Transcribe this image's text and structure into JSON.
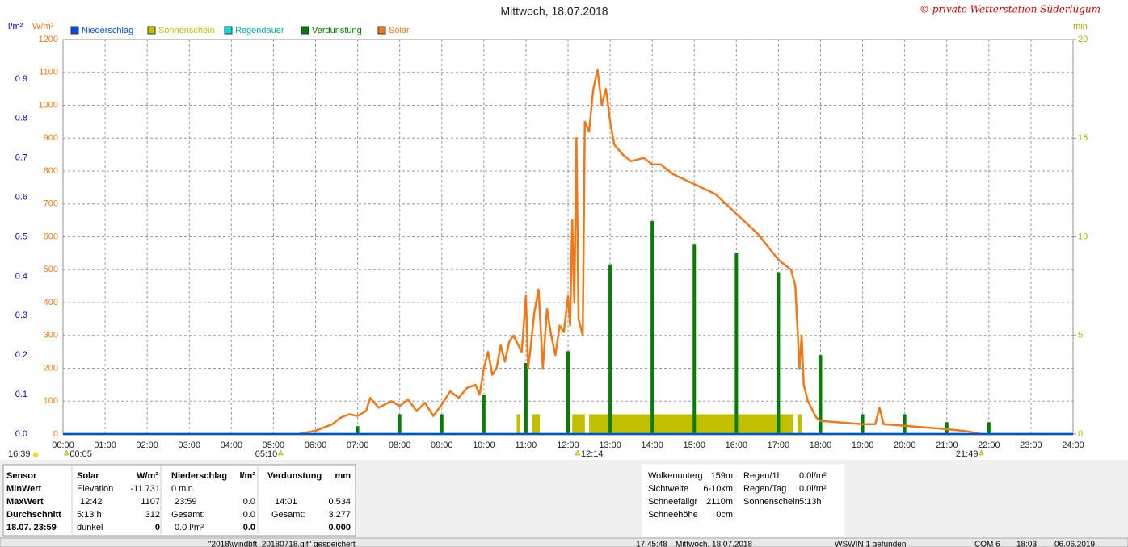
{
  "chart_data": {
    "type": "line",
    "title": "Mittwoch, 18.07.2018",
    "copyright": "© private Wetterstation Süderlügum",
    "y_unit": "W/m²",
    "y2_unit": "min",
    "y3_unit": "l/m²",
    "xlim": [
      0,
      24
    ],
    "xticks": [
      {
        "value": 0,
        "label": "00:00"
      },
      {
        "value": 1,
        "label": "01:00"
      },
      {
        "value": 2,
        "label": "02:00"
      },
      {
        "value": 3,
        "label": "03:00"
      },
      {
        "value": 4,
        "label": "04:00"
      },
      {
        "value": 5,
        "label": "05:00"
      },
      {
        "value": 6,
        "label": "06:00"
      },
      {
        "value": 7,
        "label": "07:00"
      },
      {
        "value": 8,
        "label": "08:00"
      },
      {
        "value": 9,
        "label": "09:00"
      },
      {
        "value": 10,
        "label": "10:00"
      },
      {
        "value": 11,
        "label": "11:00"
      },
      {
        "value": 12,
        "label": "12:00"
      },
      {
        "value": 13,
        "label": "13:00"
      },
      {
        "value": 14,
        "label": "14:00"
      },
      {
        "value": 15,
        "label": "15:00"
      },
      {
        "value": 16,
        "label": "16:00"
      },
      {
        "value": 17,
        "label": "17:00"
      },
      {
        "value": 18,
        "label": "18:00"
      },
      {
        "value": 19,
        "label": "19:00"
      },
      {
        "value": 20,
        "label": "20:00"
      },
      {
        "value": 21,
        "label": "21:00"
      },
      {
        "value": 22,
        "label": "22:00"
      },
      {
        "value": 23,
        "label": "23:00"
      },
      {
        "value": 24,
        "label": "24:00"
      }
    ],
    "ylim": [
      0,
      1200
    ],
    "yticks": [
      0,
      100,
      200,
      300,
      400,
      500,
      600,
      700,
      800,
      900,
      1000,
      1100,
      1200
    ],
    "y2lim": [
      0,
      20
    ],
    "y2ticks": [
      0,
      5,
      10,
      15,
      20
    ],
    "y3lim": [
      0,
      1
    ],
    "y3ticks": [
      {
        "value": 0,
        "label": "0.0"
      },
      0.1,
      0.2,
      0.3,
      0.4,
      0.5,
      0.6,
      0.7,
      0.8,
      0.9
    ],
    "grid": true,
    "series": [
      {
        "name": "Niederschlag",
        "type": "line",
        "axis": "y3",
        "color": "#0050e0",
        "x": [
          0,
          24
        ],
        "values": [
          0,
          0
        ]
      },
      {
        "name": "Sonnenschein",
        "type": "bar",
        "axis": "y2",
        "color": "#c0c000",
        "x_start": [
          10.78,
          11.15,
          12.1,
          12.5,
          17.45
        ],
        "x_end": [
          10.87,
          11.33,
          12.4,
          17.35,
          17.55
        ],
        "values": [
          1,
          1,
          1,
          1,
          1
        ]
      },
      {
        "name": "Regendauer",
        "type": "line",
        "axis": "y2",
        "color": "#00e0e0",
        "x": [
          0,
          24
        ],
        "values": [
          0,
          0
        ]
      },
      {
        "name": "Verdunstung",
        "type": "bar",
        "axis": "y3",
        "color": "#008000",
        "x": [
          7,
          8,
          9,
          10,
          11,
          12,
          13,
          14,
          15,
          16,
          17,
          18,
          19,
          20,
          21,
          22
        ],
        "values": [
          0.02,
          0.05,
          0.05,
          0.1,
          0.18,
          0.21,
          0.43,
          0.54,
          0.48,
          0.46,
          0.41,
          0.2,
          0.05,
          0.05,
          0.03,
          0.03
        ]
      },
      {
        "name": "Solar",
        "type": "line",
        "axis": "y",
        "color": "#f07818",
        "x": [
          5.6,
          6.0,
          6.4,
          6.6,
          6.8,
          7.0,
          7.2,
          7.3,
          7.5,
          7.8,
          8.0,
          8.2,
          8.4,
          8.6,
          8.8,
          9.0,
          9.2,
          9.4,
          9.6,
          9.8,
          9.9,
          10.0,
          10.1,
          10.2,
          10.3,
          10.4,
          10.5,
          10.6,
          10.7,
          10.9,
          11.0,
          11.05,
          11.1,
          11.2,
          11.3,
          11.4,
          11.5,
          11.6,
          11.7,
          11.8,
          11.9,
          12.0,
          12.05,
          12.1,
          12.15,
          12.2,
          12.25,
          12.35,
          12.4,
          12.5,
          12.6,
          12.7,
          12.8,
          12.9,
          13.0,
          13.1,
          13.3,
          13.5,
          13.8,
          14.0,
          14.2,
          14.5,
          15.0,
          15.5,
          16.0,
          16.5,
          17.0,
          17.3,
          17.4,
          17.5,
          17.55,
          17.6,
          17.7,
          17.9,
          18.0,
          18.5,
          19.0,
          19.3,
          19.4,
          19.5,
          20.0,
          20.5,
          21.0,
          21.5,
          21.8
        ],
        "values": [
          0,
          10,
          30,
          50,
          60,
          55,
          70,
          110,
          80,
          100,
          85,
          105,
          70,
          95,
          55,
          90,
          130,
          110,
          140,
          150,
          120,
          200,
          250,
          180,
          200,
          270,
          220,
          280,
          300,
          250,
          420,
          200,
          250,
          370,
          440,
          200,
          380,
          300,
          240,
          330,
          310,
          420,
          330,
          650,
          400,
          900,
          350,
          300,
          950,
          920,
          1050,
          1107,
          1000,
          1050,
          950,
          880,
          850,
          830,
          840,
          820,
          820,
          790,
          760,
          730,
          670,
          610,
          530,
          500,
          450,
          200,
          300,
          150,
          100,
          50,
          40,
          35,
          30,
          30,
          80,
          30,
          25,
          20,
          15,
          8,
          0
        ]
      }
    ],
    "day_length": "16:39",
    "markers": [
      {
        "value": 0.083,
        "label": "00:05"
      },
      {
        "value": 5.17,
        "label": "05:10"
      },
      {
        "value": 12.23,
        "label": "12:14"
      },
      {
        "value": 21.82,
        "label": "21:49"
      }
    ]
  },
  "stats": {
    "headers": [
      "Sensor",
      "Solar",
      "W/m²",
      "Niederschlag",
      "l/m²",
      "Verdunstung",
      "mm"
    ],
    "rows": [
      [
        "MinWert",
        "Elevation",
        "-11.731",
        "0 min.",
        null,
        null,
        null
      ],
      [
        "MaxWert",
        "12:42",
        "1107",
        "23:59",
        "0.0",
        "14:01",
        "0.534"
      ],
      [
        "Durchschnitt",
        "5:13 h",
        "312",
        "Gesamt:",
        "0.0",
        "Gesamt:",
        "3.277"
      ],
      [
        "18.07. 23:59",
        "dunkel",
        "0",
        "0.0 l/m²",
        "0.0",
        null,
        "0.000"
      ]
    ],
    "weather": [
      [
        "Wolkenunterg",
        "159m"
      ],
      [
        "Sichtweite",
        "6-10km"
      ],
      [
        "Schneefallgr",
        "2110m"
      ],
      [
        "Schneehöhe",
        "0cm"
      ]
    ],
    "rain": [
      [
        "Regen/1h",
        "0.0l/m²"
      ],
      [
        "Regen/Tag",
        "0.0l/m²"
      ],
      [
        "Sonnenschein",
        "5:13h"
      ]
    ]
  },
  "status": [
    "\"2018\\windbft_20180718.gif\" gespeichert",
    "17:45:48",
    "Mittwoch, 18.07.2018",
    "WSWIN 1 gefunden",
    "COM 6",
    "18:03",
    "06.06.2019"
  ]
}
